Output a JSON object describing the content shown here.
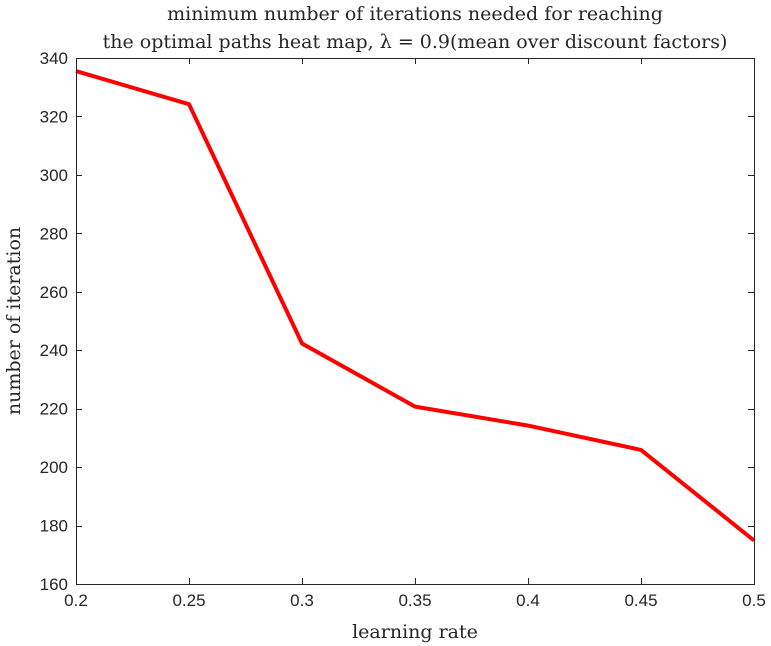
{
  "chart_data": {
    "type": "line",
    "title": "minimum number of iterations needed for reaching",
    "subtitle": "the optimal paths heat map, λ = 0.9(mean over discount factors)",
    "xlabel": "learning rate",
    "ylabel": "number of iteration",
    "xlim": [
      0.2,
      0.5
    ],
    "ylim": [
      160,
      340
    ],
    "xticks": [
      0.2,
      0.25,
      0.3,
      0.35,
      0.4,
      0.45,
      0.5
    ],
    "xtick_labels": [
      "0.2",
      "0.25",
      "0.3",
      "0.35",
      "0.4",
      "0.45",
      "0.5"
    ],
    "yticks": [
      160,
      180,
      200,
      220,
      240,
      260,
      280,
      300,
      320,
      340
    ],
    "ytick_labels": [
      "160",
      "180",
      "200",
      "220",
      "240",
      "260",
      "280",
      "300",
      "320",
      "340"
    ],
    "grid": false,
    "legend": "none",
    "series": [
      {
        "color": "#ff0000",
        "x": [
          0.2,
          0.25,
          0.3,
          0.35,
          0.4,
          0.45,
          0.5
        ],
        "y": [
          335.5,
          324.2,
          242.3,
          220.7,
          214.2,
          205.9,
          174.9
        ]
      }
    ]
  }
}
